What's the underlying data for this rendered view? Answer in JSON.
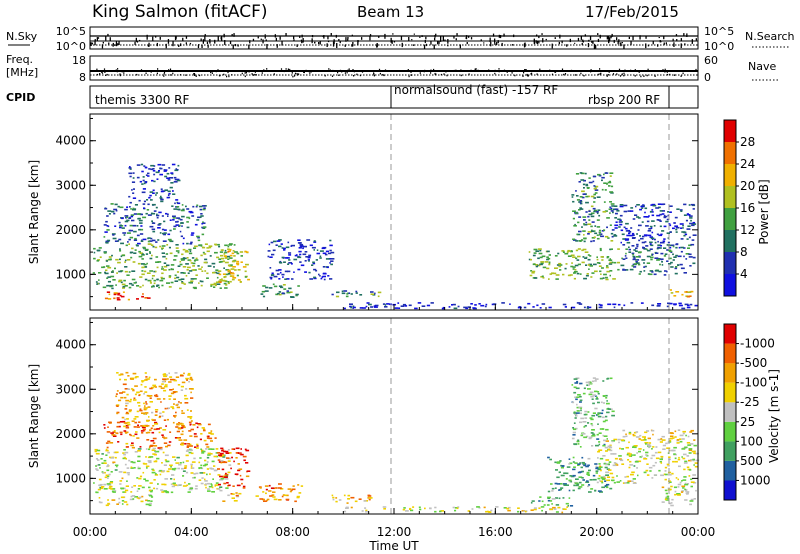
{
  "header": {
    "station": "King Salmon (fitACF)",
    "beam": "Beam 13",
    "date": "17/Feb/2015"
  },
  "nsky_panel": {
    "label": "N.Sky",
    "right_label": "N.Search",
    "left_ticks": [
      "10^5",
      "10^0"
    ],
    "right_ticks": [
      "10^5",
      "10^0"
    ]
  },
  "freq_panel": {
    "label_top": "Freq.",
    "label_unit": "[MHz]",
    "right_label": "Nave",
    "left_ticks": [
      "18",
      "8"
    ],
    "right_ticks": [
      "60",
      "0"
    ]
  },
  "cpid_panel": {
    "label": "CPID",
    "segments": [
      {
        "label": "themis 3300 RF",
        "start_hour": 0.0,
        "end_hour": 12.0
      },
      {
        "label": "normalsound (fast) -157 RF",
        "start_hour": 12.0,
        "end_hour": 22.9
      },
      {
        "label": "rbsp 200 RF",
        "start_hour": 22.9,
        "end_hour": 24.0
      }
    ]
  },
  "chart_data": [
    {
      "type": "heatmap",
      "name": "power",
      "ylabel": "Slant Range [km]",
      "xlim": [
        0,
        24
      ],
      "ylim": [
        200,
        4600
      ],
      "yticks": [
        1000,
        2000,
        3000,
        4000
      ],
      "colorbar": {
        "label": "Power [dB]",
        "ticks": [
          "4",
          "8",
          "12",
          "16",
          "20",
          "24",
          "28"
        ],
        "colors": [
          "#1010e0",
          "#2030b0",
          "#207060",
          "#40a040",
          "#b0c020",
          "#f0b000",
          "#f07000",
          "#e00000"
        ]
      },
      "regions": [
        {
          "t0": 0.1,
          "t1": 5.5,
          "r0": 700,
          "r1": 1700,
          "level": 0.45
        },
        {
          "t0": 0.3,
          "t1": 2.5,
          "r0": 450,
          "r1": 650,
          "level": 0.85
        },
        {
          "t0": 0.5,
          "t1": 4.5,
          "r0": 1700,
          "r1": 2600,
          "level": 0.25
        },
        {
          "t0": 1.5,
          "t1": 3.5,
          "r0": 2600,
          "r1": 3500,
          "level": 0.2
        },
        {
          "t0": 5.0,
          "t1": 6.2,
          "r0": 800,
          "r1": 1700,
          "level": 0.6
        },
        {
          "t0": 6.5,
          "t1": 8.2,
          "r0": 500,
          "r1": 800,
          "level": 0.4
        },
        {
          "t0": 7.0,
          "t1": 9.5,
          "r0": 900,
          "r1": 1800,
          "level": 0.15
        },
        {
          "t0": 9.5,
          "t1": 11.5,
          "r0": 500,
          "r1": 650,
          "level": 0.35
        },
        {
          "t0": 10.0,
          "t1": 24.0,
          "r0": 250,
          "r1": 380,
          "level": 0.1
        },
        {
          "t0": 17.3,
          "t1": 21.0,
          "r0": 900,
          "r1": 1600,
          "level": 0.45
        },
        {
          "t0": 21.0,
          "t1": 23.8,
          "r0": 1000,
          "r1": 1700,
          "level": 0.3
        },
        {
          "t0": 19.0,
          "t1": 20.6,
          "r0": 1700,
          "r1": 3300,
          "level": 0.35
        },
        {
          "t0": 20.5,
          "t1": 23.8,
          "r0": 1600,
          "r1": 2600,
          "level": 0.2
        },
        {
          "t0": 22.8,
          "t1": 23.9,
          "r0": 500,
          "r1": 700,
          "level": 0.7
        }
      ]
    },
    {
      "type": "heatmap",
      "name": "velocity",
      "ylabel": "Slant Range [km]",
      "xlabel": "Time UT",
      "xlim": [
        0,
        24
      ],
      "ylim": [
        200,
        4600
      ],
      "yticks": [
        1000,
        2000,
        3000,
        4000
      ],
      "xticks": [
        "00:00",
        "04:00",
        "08:00",
        "12:00",
        "16:00",
        "20:00",
        "00:00"
      ],
      "colorbar": {
        "label": "Velocity [m s-1]",
        "ticks": [
          "1000",
          "500",
          "100",
          "25",
          "-25",
          "-100",
          "-500",
          "-1000"
        ],
        "colors": [
          "#1010d0",
          "#2060a0",
          "#40a060",
          "#60d040",
          "#c0c0c0",
          "#f0d000",
          "#f0a000",
          "#f06000",
          "#e00000"
        ]
      },
      "regions": [
        {
          "t0": 0.1,
          "t1": 5.5,
          "r0": 700,
          "r1": 1700,
          "level": 0.5
        },
        {
          "t0": 0.5,
          "t1": 5.0,
          "r0": 1700,
          "r1": 2300,
          "level": 0.8
        },
        {
          "t0": 1.0,
          "t1": 4.0,
          "r0": 2300,
          "r1": 3400,
          "level": 0.7
        },
        {
          "t0": 0.3,
          "t1": 2.5,
          "r0": 400,
          "r1": 650,
          "level": 0.55
        },
        {
          "t0": 5.0,
          "t1": 6.2,
          "r0": 800,
          "r1": 1700,
          "level": 0.92
        },
        {
          "t0": 5.2,
          "t1": 6.0,
          "r0": 500,
          "r1": 700,
          "level": 0.65
        },
        {
          "t0": 6.5,
          "t1": 8.4,
          "r0": 500,
          "r1": 900,
          "level": 0.75
        },
        {
          "t0": 9.5,
          "t1": 11.5,
          "r0": 450,
          "r1": 650,
          "level": 0.7
        },
        {
          "t0": 10.0,
          "t1": 19.0,
          "r0": 250,
          "r1": 380,
          "level": 0.55
        },
        {
          "t0": 17.3,
          "t1": 19.0,
          "r0": 400,
          "r1": 600,
          "level": 0.3
        },
        {
          "t0": 18.0,
          "t1": 20.5,
          "r0": 700,
          "r1": 1500,
          "level": 0.3
        },
        {
          "t0": 20.0,
          "t1": 23.9,
          "r0": 900,
          "r1": 1900,
          "level": 0.5
        },
        {
          "t0": 19.0,
          "t1": 20.6,
          "r0": 1700,
          "r1": 3300,
          "level": 0.35
        },
        {
          "t0": 22.5,
          "t1": 23.9,
          "r0": 400,
          "r1": 900,
          "level": 0.5
        },
        {
          "t0": 21.0,
          "t1": 23.9,
          "r0": 1800,
          "r1": 2100,
          "level": 0.6
        }
      ]
    }
  ]
}
